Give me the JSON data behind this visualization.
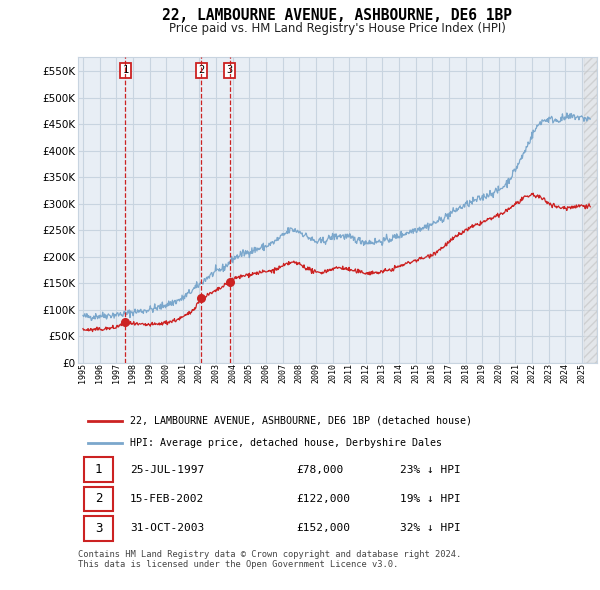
{
  "title": "22, LAMBOURNE AVENUE, ASHBOURNE, DE6 1BP",
  "subtitle": "Price paid vs. HM Land Registry's House Price Index (HPI)",
  "ytick_vals": [
    0,
    50000,
    100000,
    150000,
    200000,
    250000,
    300000,
    350000,
    400000,
    450000,
    500000,
    550000
  ],
  "ylim": [
    0,
    577000
  ],
  "xlim_left": 1994.7,
  "xlim_right": 2025.9,
  "hpi_color": "#7ba7cc",
  "price_color": "#cc2222",
  "background_color": "#ffffff",
  "chart_bg": "#e8eef5",
  "grid_color": "#c8d4e0",
  "purchases": [
    {
      "label": "1",
      "date_num": 1997.55,
      "price": 78000,
      "text": "25-JUL-1997",
      "price_str": "£78,000",
      "hpi_str": "23% ↓ HPI"
    },
    {
      "label": "2",
      "date_num": 2002.12,
      "price": 122000,
      "text": "15-FEB-2002",
      "price_str": "£122,000",
      "hpi_str": "19% ↓ HPI"
    },
    {
      "label": "3",
      "date_num": 2003.83,
      "price": 152000,
      "text": "31-OCT-2003",
      "price_str": "£152,000",
      "hpi_str": "32% ↓ HPI"
    }
  ],
  "legend_label_red": "22, LAMBOURNE AVENUE, ASHBOURNE, DE6 1BP (detached house)",
  "legend_label_blue": "HPI: Average price, detached house, Derbyshire Dales",
  "footer": "Contains HM Land Registry data © Crown copyright and database right 2024.\nThis data is licensed under the Open Government Licence v3.0.",
  "hpi_anchors": [
    [
      1995.0,
      88000
    ],
    [
      1995.5,
      87000
    ],
    [
      1996.0,
      89000
    ],
    [
      1996.5,
      90000
    ],
    [
      1997.0,
      91000
    ],
    [
      1997.5,
      92500
    ],
    [
      1998.0,
      96000
    ],
    [
      1998.5,
      98000
    ],
    [
      1999.0,
      101000
    ],
    [
      1999.5,
      104000
    ],
    [
      2000.0,
      110000
    ],
    [
      2000.5,
      115000
    ],
    [
      2001.0,
      122000
    ],
    [
      2001.5,
      135000
    ],
    [
      2002.0,
      148000
    ],
    [
      2002.5,
      162000
    ],
    [
      2003.0,
      172000
    ],
    [
      2003.5,
      180000
    ],
    [
      2004.0,
      196000
    ],
    [
      2004.5,
      205000
    ],
    [
      2005.0,
      210000
    ],
    [
      2005.5,
      215000
    ],
    [
      2006.0,
      220000
    ],
    [
      2006.5,
      228000
    ],
    [
      2007.0,
      240000
    ],
    [
      2007.5,
      252000
    ],
    [
      2008.0,
      248000
    ],
    [
      2008.5,
      238000
    ],
    [
      2009.0,
      228000
    ],
    [
      2009.5,
      230000
    ],
    [
      2010.0,
      238000
    ],
    [
      2010.5,
      240000
    ],
    [
      2011.0,
      237000
    ],
    [
      2011.5,
      232000
    ],
    [
      2012.0,
      228000
    ],
    [
      2012.5,
      228000
    ],
    [
      2013.0,
      230000
    ],
    [
      2013.5,
      234000
    ],
    [
      2014.0,
      240000
    ],
    [
      2014.5,
      246000
    ],
    [
      2015.0,
      252000
    ],
    [
      2015.5,
      256000
    ],
    [
      2016.0,
      262000
    ],
    [
      2016.5,
      270000
    ],
    [
      2017.0,
      280000
    ],
    [
      2017.5,
      290000
    ],
    [
      2018.0,
      298000
    ],
    [
      2018.5,
      305000
    ],
    [
      2019.0,
      312000
    ],
    [
      2019.5,
      320000
    ],
    [
      2020.0,
      325000
    ],
    [
      2020.5,
      340000
    ],
    [
      2021.0,
      365000
    ],
    [
      2021.5,
      395000
    ],
    [
      2022.0,
      430000
    ],
    [
      2022.5,
      455000
    ],
    [
      2023.0,
      460000
    ],
    [
      2023.5,
      458000
    ],
    [
      2024.0,
      462000
    ],
    [
      2024.5,
      465000
    ],
    [
      2025.0,
      462000
    ],
    [
      2025.5,
      460000
    ]
  ],
  "price_anchors": [
    [
      1995.0,
      63000
    ],
    [
      1995.5,
      62000
    ],
    [
      1996.0,
      63500
    ],
    [
      1996.5,
      65000
    ],
    [
      1997.0,
      67000
    ],
    [
      1997.55,
      78000
    ],
    [
      1998.0,
      73000
    ],
    [
      1998.5,
      72000
    ],
    [
      1999.0,
      72000
    ],
    [
      1999.5,
      73000
    ],
    [
      2000.0,
      76000
    ],
    [
      2000.5,
      80000
    ],
    [
      2001.0,
      86000
    ],
    [
      2001.5,
      96000
    ],
    [
      2002.12,
      122000
    ],
    [
      2002.5,
      128000
    ],
    [
      2003.0,
      136000
    ],
    [
      2003.83,
      152000
    ],
    [
      2004.0,
      158000
    ],
    [
      2004.5,
      163000
    ],
    [
      2005.0,
      167000
    ],
    [
      2005.5,
      170000
    ],
    [
      2006.0,
      172000
    ],
    [
      2006.5,
      175000
    ],
    [
      2007.0,
      182000
    ],
    [
      2007.5,
      190000
    ],
    [
      2008.0,
      187000
    ],
    [
      2008.5,
      178000
    ],
    [
      2009.0,
      170000
    ],
    [
      2009.5,
      172000
    ],
    [
      2010.0,
      178000
    ],
    [
      2010.5,
      180000
    ],
    [
      2011.0,
      176000
    ],
    [
      2011.5,
      172000
    ],
    [
      2012.0,
      170000
    ],
    [
      2012.5,
      170000
    ],
    [
      2013.0,
      172000
    ],
    [
      2013.5,
      176000
    ],
    [
      2014.0,
      182000
    ],
    [
      2014.5,
      188000
    ],
    [
      2015.0,
      194000
    ],
    [
      2015.5,
      198000
    ],
    [
      2016.0,
      205000
    ],
    [
      2016.5,
      215000
    ],
    [
      2017.0,
      228000
    ],
    [
      2017.5,
      240000
    ],
    [
      2018.0,
      250000
    ],
    [
      2018.5,
      258000
    ],
    [
      2019.0,
      265000
    ],
    [
      2019.5,
      272000
    ],
    [
      2020.0,
      278000
    ],
    [
      2020.5,
      288000
    ],
    [
      2021.0,
      300000
    ],
    [
      2021.5,
      310000
    ],
    [
      2022.0,
      318000
    ],
    [
      2022.5,
      312000
    ],
    [
      2023.0,
      302000
    ],
    [
      2023.5,
      294000
    ],
    [
      2024.0,
      292000
    ],
    [
      2024.5,
      295000
    ],
    [
      2025.0,
      297000
    ],
    [
      2025.5,
      296000
    ]
  ]
}
